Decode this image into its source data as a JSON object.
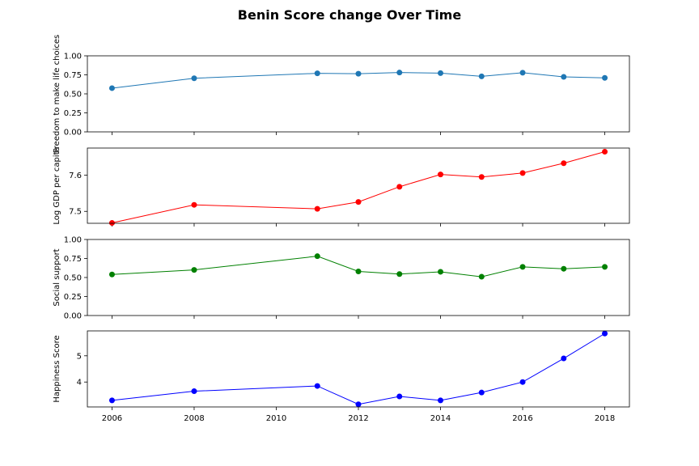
{
  "chart_data": {
    "type": "line",
    "title": "Benin Score change Over Time",
    "x": [
      2006,
      2008,
      2011,
      2012,
      2013,
      2014,
      2015,
      2016,
      2017,
      2018
    ],
    "xlim": [
      2005.4,
      2018.6
    ],
    "xticks": [
      2006,
      2008,
      2010,
      2012,
      2014,
      2016,
      2018
    ],
    "subplots": [
      {
        "ylabel": "Freedom to make life choices",
        "color": "#1f77b4",
        "ylim": [
          0,
          1
        ],
        "yticks": [
          0,
          0.25,
          0.5,
          0.75,
          1.0
        ],
        "ytick_labels": [
          "0.00",
          "0.25",
          "0.50",
          "0.75",
          "1.00"
        ],
        "values": [
          0.575,
          0.705,
          0.77,
          0.765,
          0.78,
          0.773,
          0.73,
          0.778,
          0.723,
          0.71
        ]
      },
      {
        "ylabel": "Log GDP per capita",
        "color": "#ff0000",
        "ylim": [
          7.467,
          7.675
        ],
        "yticks": [
          7.5,
          7.6
        ],
        "ytick_labels": [
          "7.5",
          "7.6"
        ],
        "values": [
          7.468,
          7.518,
          7.507,
          7.526,
          7.568,
          7.602,
          7.595,
          7.606,
          7.633,
          7.665
        ]
      },
      {
        "ylabel": "Social support",
        "color": "#008000",
        "ylim": [
          0,
          1
        ],
        "yticks": [
          0,
          0.25,
          0.5,
          0.75,
          1.0
        ],
        "ytick_labels": [
          "0.00",
          "0.25",
          "0.50",
          "0.75",
          "1.00"
        ],
        "values": [
          0.54,
          0.6,
          0.78,
          0.58,
          0.545,
          0.575,
          0.51,
          0.64,
          0.615,
          0.64
        ]
      },
      {
        "ylabel": "Happiness Score",
        "color": "#0000ff",
        "ylim": [
          3.05,
          5.95
        ],
        "yticks": [
          4,
          5
        ],
        "ytick_labels": [
          "4",
          "5"
        ],
        "values": [
          3.3,
          3.65,
          3.85,
          3.15,
          3.45,
          3.3,
          3.6,
          4.0,
          4.9,
          5.85
        ]
      }
    ]
  }
}
